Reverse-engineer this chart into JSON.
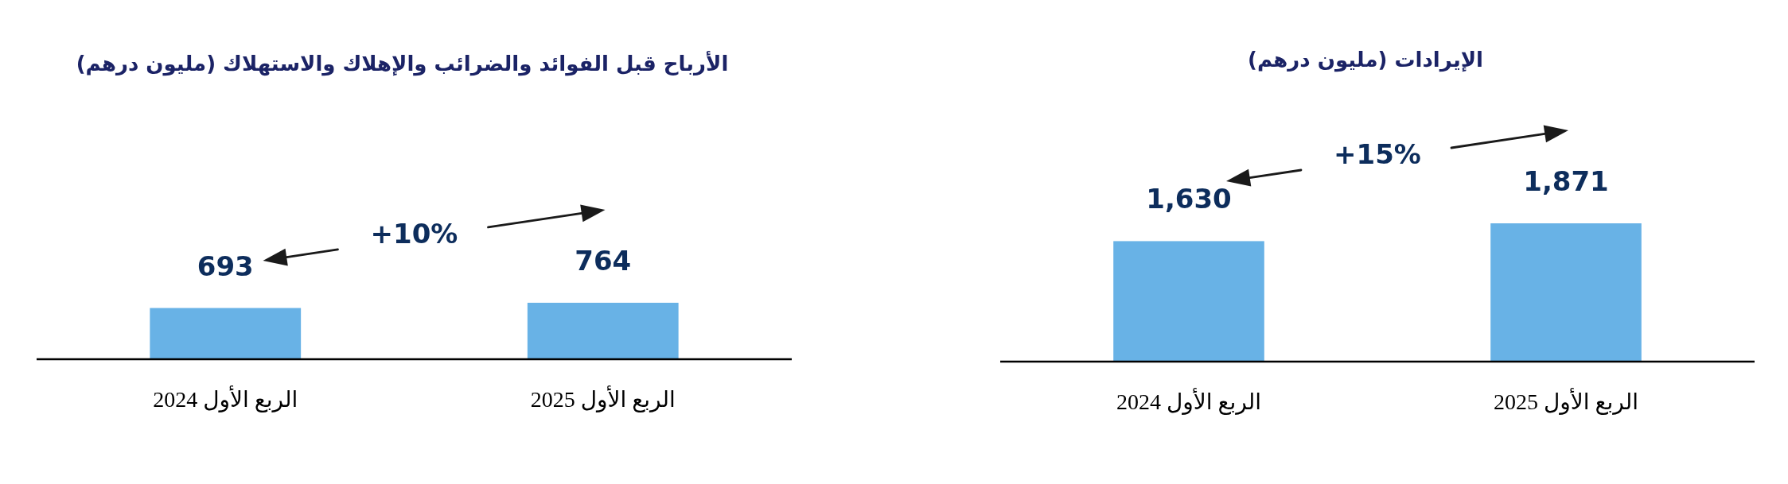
{
  "chart_data": [
    {
      "type": "bar",
      "title": "الأرباح قبل الفوائد والضرائب والإهلاك والاستهلاك (مليون درهم)",
      "categories": [
        "الربع الأول 2024",
        "الربع الأول 2025"
      ],
      "values": [
        693,
        764
      ],
      "color": "#68b2e6",
      "data_labels": true,
      "annotations": [
        "+10%"
      ]
    },
    {
      "type": "bar",
      "title": "الإيرادات (مليون درهم)",
      "categories": [
        "الربع الأول 2024",
        "الربع الأول 2025"
      ],
      "values": [
        1630,
        1871
      ],
      "value_labels": [
        "1,630",
        "1,871"
      ],
      "color": "#68b2e6",
      "annotations": [
        "+15%"
      ]
    }
  ]
}
